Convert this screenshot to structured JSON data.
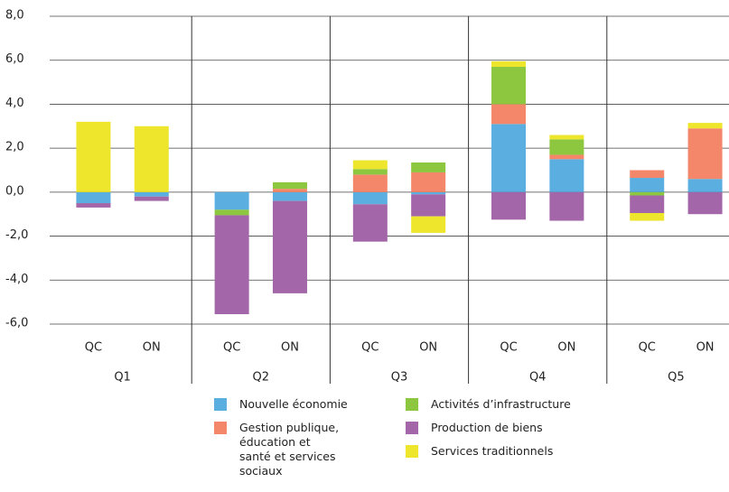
{
  "chart_data": {
    "type": "stacked-bar",
    "categories": [
      "QC",
      "ON",
      "QC",
      "ON",
      "QC",
      "ON",
      "QC",
      "ON",
      "QC",
      "ON"
    ],
    "groups": [
      "Q1",
      "Q2",
      "Q3",
      "Q4",
      "Q5"
    ],
    "series": [
      {
        "name": "Nouvelle économie",
        "color": "#5aaee0",
        "values": [
          -0.5,
          -0.2,
          -0.8,
          -0.4,
          -0.55,
          -0.1,
          3.1,
          1.5,
          0.65,
          0.6
        ]
      },
      {
        "name": "Gestion publique, éducation et santé et services sociaux",
        "color": "#f4876a",
        "values": [
          0,
          0,
          0,
          0.15,
          0.8,
          0.9,
          0.9,
          0.2,
          0.35,
          2.3
        ]
      },
      {
        "name": "Activités d’infrastructure",
        "color": "#8dc63f",
        "values": [
          0,
          0,
          -0.25,
          0.3,
          0.25,
          0.45,
          1.7,
          0.7,
          -0.15,
          0
        ]
      },
      {
        "name": "Production de biens",
        "color": "#a366a8",
        "values": [
          -0.2,
          -0.2,
          -4.5,
          -4.2,
          -1.7,
          -1.0,
          -1.25,
          -1.3,
          -0.8,
          -1.0
        ]
      },
      {
        "name": "Services traditionnels",
        "color": "#ede62d",
        "values": [
          3.2,
          3.0,
          0,
          0,
          0.4,
          -0.75,
          0.25,
          0.2,
          -0.35,
          0.25
        ]
      }
    ],
    "ylim": [
      -6,
      8
    ],
    "yticks": [
      {
        "value": -6,
        "label": "-6,0"
      },
      {
        "value": -4,
        "label": "-4,0"
      },
      {
        "value": -2,
        "label": "-2,0"
      },
      {
        "value": 0,
        "label": "0,0"
      },
      {
        "value": 2,
        "label": "2,0"
      },
      {
        "value": 4,
        "label": "4,0"
      },
      {
        "value": 6,
        "label": "6,0"
      },
      {
        "value": 8,
        "label": "8,0"
      }
    ],
    "grid": true
  }
}
